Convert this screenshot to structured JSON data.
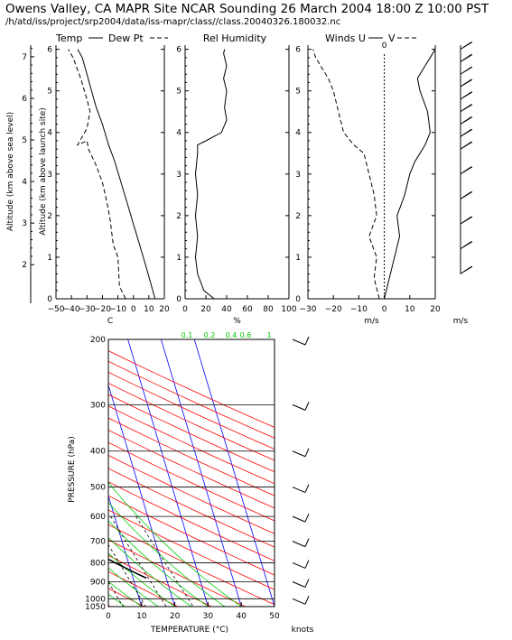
{
  "header": {
    "title": "Owens Valley, CA MAPR Site NCAR Sounding 26 March 2004 18:00 Z 10:00 PST",
    "subtitle": "/h/atd/iss/project/srp2004/data/iss-mapr/class//class.20040326.180032.nc"
  },
  "colors": {
    "isotherm": "#0000ff",
    "dry_adiabat": "#ff0000",
    "moist_adiabat": "#00cc00",
    "mixing_ratio": "#000000",
    "profile": "#000000",
    "mixing_ratio_label": "#00cc00"
  },
  "chart_data": [
    {
      "type": "line",
      "panel": "temperature",
      "title_solid": "Temp",
      "title_dashed": "Dew Pt",
      "xlabel": "C",
      "ylabel_left_outer": "Altitude (km above sea level)",
      "ylabel_left_inner": "Altitude (km above launch site)",
      "xlim": [
        -50,
        20
      ],
      "ylim": [
        0,
        6.1
      ],
      "xticks": [
        "−50",
        "−40",
        "−30",
        "−20",
        "−10",
        "0",
        "10",
        "20"
      ],
      "yticks_inner": [
        "0",
        "1",
        "2",
        "3",
        "4",
        "5",
        "6"
      ],
      "yticks_outer": [
        "2",
        "3",
        "4",
        "5",
        "6",
        "7"
      ],
      "series": [
        {
          "name": "Temp",
          "style": "solid",
          "x": [
            14,
            11,
            8,
            4,
            0,
            -4,
            -8,
            -12,
            -16,
            -20,
            -24,
            -27,
            -30,
            -33,
            -36
          ],
          "y": [
            0,
            0.4,
            0.8,
            1.3,
            1.8,
            2.3,
            2.8,
            3.3,
            3.7,
            4.2,
            4.6,
            5.0,
            5.4,
            5.8,
            6.0
          ]
        },
        {
          "name": "Dew Pt",
          "style": "dashed",
          "x": [
            -5,
            -9,
            -10,
            -13,
            -15,
            -17,
            -20,
            -24,
            -29,
            -30,
            -36,
            -30,
            -28,
            -30,
            -34,
            -39,
            -42
          ],
          "y": [
            0,
            0.3,
            1.0,
            1.3,
            1.9,
            2.3,
            2.8,
            3.2,
            3.6,
            3.8,
            3.7,
            4.1,
            4.5,
            4.8,
            5.3,
            5.8,
            6.0
          ]
        }
      ]
    },
    {
      "type": "line",
      "panel": "humidity",
      "title": "Rel Humidity",
      "xlabel": "%",
      "xlim": [
        0,
        100
      ],
      "ylim": [
        0,
        6.1
      ],
      "xticks": [
        "0",
        "20",
        "40",
        "60",
        "80",
        "100"
      ],
      "yticks": [
        "0",
        "1",
        "2",
        "3",
        "4",
        "5",
        "6"
      ],
      "series": [
        {
          "name": "RH",
          "style": "solid",
          "x": [
            28,
            18,
            12,
            10,
            12,
            10,
            12,
            10,
            12,
            12,
            20,
            35,
            40,
            38,
            40,
            37,
            40,
            37,
            38
          ],
          "y": [
            0,
            0.2,
            0.6,
            1.0,
            1.5,
            2.0,
            2.5,
            3.0,
            3.5,
            3.7,
            3.8,
            4.0,
            4.3,
            4.6,
            5.0,
            5.3,
            5.6,
            5.9,
            6.0
          ]
        }
      ]
    },
    {
      "type": "line",
      "panel": "winds",
      "title": "Winds U",
      "title_dashed": "V",
      "xlabel": "m/s",
      "xlim": [
        -30,
        20
      ],
      "ylim": [
        0,
        6.1
      ],
      "xticks": [
        "−30",
        "−20",
        "−10",
        "0",
        "10",
        "20"
      ],
      "zero_label": "0",
      "series": [
        {
          "name": "U",
          "style": "solid",
          "x": [
            0,
            2,
            4,
            6,
            5,
            8,
            10,
            12,
            14,
            16,
            18,
            17,
            14,
            13,
            16,
            18,
            20
          ],
          "y": [
            0,
            0.5,
            1.0,
            1.5,
            2.0,
            2.5,
            3.0,
            3.3,
            3.5,
            3.7,
            4.0,
            4.5,
            5.0,
            5.3,
            5.6,
            5.8,
            6.0
          ]
        },
        {
          "name": "V",
          "style": "dashed",
          "x": [
            -2,
            -4,
            -3,
            -6,
            -3,
            -4,
            -6,
            -8,
            -12,
            -16,
            -18,
            -20,
            -22,
            -25,
            -27,
            -28
          ],
          "y": [
            0,
            0.5,
            1.0,
            1.5,
            2.0,
            2.5,
            3.0,
            3.5,
            3.7,
            4.0,
            4.5,
            5.0,
            5.3,
            5.6,
            5.8,
            6.0
          ]
        }
      ]
    },
    {
      "type": "wind_barbs",
      "panel": "vertical_barbs",
      "unit_label": "m/s",
      "levels": [
        0.6,
        1.2,
        1.8,
        2.4,
        3.0,
        3.6,
        3.9,
        4.2,
        4.5,
        4.8,
        5.1,
        5.4,
        5.7,
        6.0
      ]
    },
    {
      "type": "skew-t",
      "panel": "skewt",
      "xlabel": "TEMPERATURE (°C)",
      "ylabel": "PRESSURE (hPa)",
      "xlim": [
        0,
        50
      ],
      "plim": [
        1050,
        200
      ],
      "xticks": [
        "0",
        "10",
        "20",
        "30",
        "40",
        "50"
      ],
      "pressure_ticks": [
        "200",
        "300",
        "400",
        "500",
        "600",
        "700",
        "800",
        "900",
        "1000",
        "1050"
      ],
      "mixing_ratio_labels": [
        "0.1",
        "0.2",
        "0.4",
        "0.6",
        "1"
      ],
      "barb_unit_label": "knots",
      "series": [
        {
          "name": "Temperature",
          "t": [
            14,
            11,
            6,
            1,
            -7,
            -16,
            -29,
            -45,
            -55,
            -57
          ],
          "p": [
            880,
            850,
            800,
            750,
            700,
            600,
            500,
            400,
            300,
            200
          ]
        },
        {
          "name": "Dewpoint",
          "t": [
            -5,
            -10,
            -14,
            -18,
            -24,
            -30,
            -38,
            -50,
            -62,
            -70
          ],
          "p": [
            880,
            850,
            800,
            750,
            700,
            600,
            500,
            400,
            300,
            200
          ]
        }
      ]
    }
  ]
}
